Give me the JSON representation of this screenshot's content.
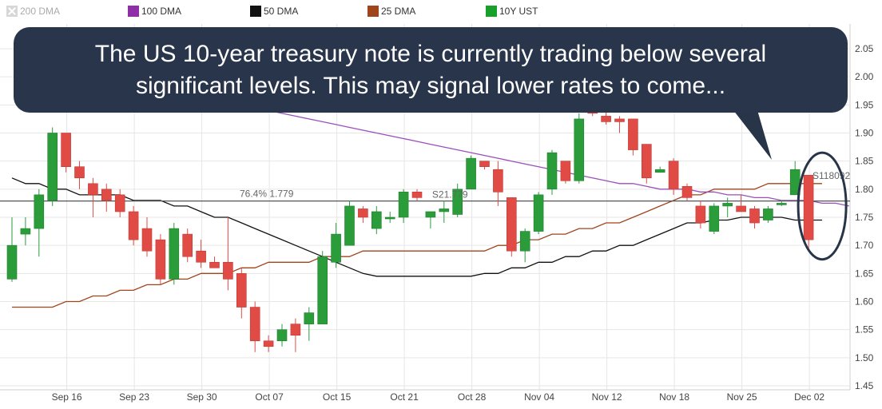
{
  "legend": [
    {
      "label": "200 DMA",
      "color": "#d0d0d0",
      "icon": "x-icon",
      "faded": true
    },
    {
      "label": "100 DMA",
      "color": "#8e2fa8"
    },
    {
      "label": "50 DMA",
      "color": "#111111"
    },
    {
      "label": "25 DMA",
      "color": "#a0441c"
    },
    {
      "label": "10Y UST",
      "color": "#17a02a"
    }
  ],
  "callout": {
    "text": "The US 10-year treasury note is currently trading below several significant levels.  This may signal lower rates to come..."
  },
  "chart_data": {
    "type": "candlestick",
    "title": "",
    "xlabel": "",
    "ylabel": "",
    "ylim": [
      1.45,
      2.08
    ],
    "yticks": [
      "1.45",
      "1.50",
      "1.55",
      "1.60",
      "1.65",
      "1.70",
      "1.75",
      "1.80",
      "1.85",
      "1.90",
      "1.95",
      "2.00",
      "2.05"
    ],
    "xticks": [
      "Sep 16",
      "Sep 23",
      "Sep 30",
      "Oct 07",
      "Oct 15",
      "Oct 21",
      "Oct 28",
      "Nov 04",
      "Nov 12",
      "Nov 18",
      "Nov 25",
      "Dec 02"
    ],
    "xtick_index": [
      4,
      9,
      14,
      19,
      24,
      29,
      34,
      39,
      44,
      49,
      54,
      59
    ],
    "grid": true,
    "candles": [
      {
        "o": 1.64,
        "h": 1.75,
        "l": 1.635,
        "c": 1.7
      },
      {
        "o": 1.72,
        "h": 1.75,
        "l": 1.7,
        "c": 1.73
      },
      {
        "o": 1.73,
        "h": 1.8,
        "l": 1.68,
        "c": 1.79
      },
      {
        "o": 1.78,
        "h": 1.91,
        "l": 1.77,
        "c": 1.9
      },
      {
        "o": 1.9,
        "h": 1.9,
        "l": 1.83,
        "c": 1.84
      },
      {
        "o": 1.84,
        "h": 1.85,
        "l": 1.8,
        "c": 1.82
      },
      {
        "o": 1.81,
        "h": 1.82,
        "l": 1.75,
        "c": 1.79
      },
      {
        "o": 1.8,
        "h": 1.81,
        "l": 1.76,
        "c": 1.78
      },
      {
        "o": 1.79,
        "h": 1.8,
        "l": 1.75,
        "c": 1.76
      },
      {
        "o": 1.76,
        "h": 1.77,
        "l": 1.7,
        "c": 1.71
      },
      {
        "o": 1.73,
        "h": 1.75,
        "l": 1.68,
        "c": 1.69
      },
      {
        "o": 1.71,
        "h": 1.72,
        "l": 1.63,
        "c": 1.64
      },
      {
        "o": 1.64,
        "h": 1.74,
        "l": 1.63,
        "c": 1.73
      },
      {
        "o": 1.72,
        "h": 1.73,
        "l": 1.67,
        "c": 1.68
      },
      {
        "o": 1.69,
        "h": 1.71,
        "l": 1.66,
        "c": 1.67
      },
      {
        "o": 1.67,
        "h": 1.68,
        "l": 1.66,
        "c": 1.66
      },
      {
        "o": 1.67,
        "h": 1.75,
        "l": 1.62,
        "c": 1.64
      },
      {
        "o": 1.65,
        "h": 1.66,
        "l": 1.57,
        "c": 1.59
      },
      {
        "o": 1.59,
        "h": 1.6,
        "l": 1.51,
        "c": 1.53
      },
      {
        "o": 1.53,
        "h": 1.54,
        "l": 1.51,
        "c": 1.52
      },
      {
        "o": 1.53,
        "h": 1.56,
        "l": 1.52,
        "c": 1.55
      },
      {
        "o": 1.56,
        "h": 1.57,
        "l": 1.51,
        "c": 1.54
      },
      {
        "o": 1.56,
        "h": 1.59,
        "l": 1.53,
        "c": 1.58
      },
      {
        "o": 1.56,
        "h": 1.69,
        "l": 1.56,
        "c": 1.68
      },
      {
        "o": 1.67,
        "h": 1.74,
        "l": 1.66,
        "c": 1.72
      },
      {
        "o": 1.7,
        "h": 1.78,
        "l": 1.7,
        "c": 1.77
      },
      {
        "o": 1.765,
        "h": 1.77,
        "l": 1.74,
        "c": 1.75
      },
      {
        "o": 1.73,
        "h": 1.77,
        "l": 1.72,
        "c": 1.76
      },
      {
        "o": 1.75,
        "h": 1.76,
        "l": 1.74,
        "c": 1.75
      },
      {
        "o": 1.75,
        "h": 1.8,
        "l": 1.74,
        "c": 1.795
      },
      {
        "o": 1.795,
        "h": 1.8,
        "l": 1.78,
        "c": 1.785
      },
      {
        "o": 1.75,
        "h": 1.76,
        "l": 1.73,
        "c": 1.76
      },
      {
        "o": 1.76,
        "h": 1.78,
        "l": 1.74,
        "c": 1.765
      },
      {
        "o": 1.755,
        "h": 1.81,
        "l": 1.75,
        "c": 1.8
      },
      {
        "o": 1.8,
        "h": 1.86,
        "l": 1.8,
        "c": 1.855
      },
      {
        "o": 1.85,
        "h": 1.85,
        "l": 1.835,
        "c": 1.84
      },
      {
        "o": 1.835,
        "h": 1.85,
        "l": 1.77,
        "c": 1.795
      },
      {
        "o": 1.785,
        "h": 1.785,
        "l": 1.68,
        "c": 1.69
      },
      {
        "o": 1.69,
        "h": 1.73,
        "l": 1.67,
        "c": 1.725
      },
      {
        "o": 1.725,
        "h": 1.795,
        "l": 1.72,
        "c": 1.79
      },
      {
        "o": 1.8,
        "h": 1.87,
        "l": 1.79,
        "c": 1.865
      },
      {
        "o": 1.85,
        "h": 1.85,
        "l": 1.81,
        "c": 1.815
      },
      {
        "o": 1.815,
        "h": 1.935,
        "l": 1.81,
        "c": 1.925
      },
      {
        "o": 1.94,
        "h": 1.94,
        "l": 1.93,
        "c": 1.935
      },
      {
        "o": 1.93,
        "h": 1.945,
        "l": 1.915,
        "c": 1.92
      },
      {
        "o": 1.925,
        "h": 1.93,
        "l": 1.9,
        "c": 1.92
      },
      {
        "o": 1.925,
        "h": 1.925,
        "l": 1.86,
        "c": 1.87
      },
      {
        "o": 1.88,
        "h": 1.88,
        "l": 1.81,
        "c": 1.82
      },
      {
        "o": 1.83,
        "h": 1.84,
        "l": 1.83,
        "c": 1.835
      },
      {
        "o": 1.85,
        "h": 1.855,
        "l": 1.79,
        "c": 1.8
      },
      {
        "o": 1.805,
        "h": 1.81,
        "l": 1.78,
        "c": 1.785
      },
      {
        "o": 1.77,
        "h": 1.78,
        "l": 1.73,
        "c": 1.74
      },
      {
        "o": 1.725,
        "h": 1.775,
        "l": 1.72,
        "c": 1.77
      },
      {
        "o": 1.77,
        "h": 1.785,
        "l": 1.75,
        "c": 1.775
      },
      {
        "o": 1.77,
        "h": 1.79,
        "l": 1.76,
        "c": 1.76
      },
      {
        "o": 1.765,
        "h": 1.77,
        "l": 1.73,
        "c": 1.74
      },
      {
        "o": 1.745,
        "h": 1.77,
        "l": 1.74,
        "c": 1.765
      },
      {
        "o": 1.775,
        "h": 1.78,
        "l": 1.77,
        "c": 1.775
      },
      {
        "o": 1.79,
        "h": 1.85,
        "l": 1.79,
        "c": 1.835
      },
      {
        "o": 1.825,
        "h": 1.825,
        "l": 1.69,
        "c": 1.71
      }
    ],
    "ma25": [
      1.59,
      1.59,
      1.59,
      1.59,
      1.6,
      1.6,
      1.61,
      1.61,
      1.62,
      1.62,
      1.63,
      1.63,
      1.64,
      1.64,
      1.65,
      1.65,
      1.65,
      1.66,
      1.66,
      1.67,
      1.67,
      1.67,
      1.67,
      1.68,
      1.68,
      1.68,
      1.69,
      1.69,
      1.69,
      1.69,
      1.69,
      1.69,
      1.69,
      1.69,
      1.69,
      1.69,
      1.7,
      1.7,
      1.71,
      1.71,
      1.72,
      1.72,
      1.73,
      1.73,
      1.74,
      1.74,
      1.75,
      1.76,
      1.77,
      1.78,
      1.79,
      1.79,
      1.8,
      1.8,
      1.8,
      1.8,
      1.81,
      1.81,
      1.81,
      1.81,
      1.81
    ],
    "ma50": [
      1.82,
      1.81,
      1.81,
      1.8,
      1.8,
      1.79,
      1.79,
      1.79,
      1.79,
      1.78,
      1.78,
      1.78,
      1.77,
      1.77,
      1.76,
      1.75,
      1.75,
      1.74,
      1.73,
      1.72,
      1.71,
      1.7,
      1.69,
      1.68,
      1.67,
      1.66,
      1.65,
      1.645,
      1.645,
      1.645,
      1.645,
      1.645,
      1.645,
      1.645,
      1.645,
      1.65,
      1.65,
      1.66,
      1.66,
      1.67,
      1.67,
      1.68,
      1.68,
      1.69,
      1.69,
      1.7,
      1.7,
      1.71,
      1.72,
      1.73,
      1.74,
      1.74,
      1.745,
      1.745,
      1.75,
      1.75,
      1.75,
      1.75,
      1.745,
      1.745,
      1.745
    ],
    "ma100_segment": {
      "from_index": 17,
      "values": [
        1.95,
        1.945,
        1.94,
        1.935,
        1.93,
        1.925,
        1.92,
        1.915,
        1.91,
        1.905,
        1.9,
        1.895,
        1.89,
        1.885,
        1.88,
        1.875,
        1.87,
        1.865,
        1.86,
        1.855,
        1.85,
        1.845,
        1.84,
        1.835,
        1.83,
        1.825,
        1.82,
        1.815,
        1.81,
        1.81,
        1.805,
        1.8,
        1.8,
        1.8,
        1.795,
        1.795,
        1.79,
        1.79,
        1.785,
        1.785,
        1.78,
        1.78,
        1.78,
        1.775,
        1.775,
        1.77
      ]
    },
    "hline": {
      "value": 1.779,
      "label": "76.4% 1.779"
    },
    "annotations": [
      {
        "label": "S21.779",
        "value": 1.779,
        "index": 31
      },
      {
        "label": "S118092",
        "value": 1.81,
        "index": 60
      }
    ],
    "highlight": {
      "index": 59,
      "ylim": [
        1.675,
        1.865
      ]
    },
    "colors": {
      "up": "#2a9d3a",
      "down": "#e04c45",
      "wick": "#444444",
      "grid": "#e6e6e6",
      "ma100": "#9a4fbb",
      "ma50": "#111111",
      "ma25": "#a0441c",
      "hline": "#555555",
      "ring": "#283548"
    }
  }
}
